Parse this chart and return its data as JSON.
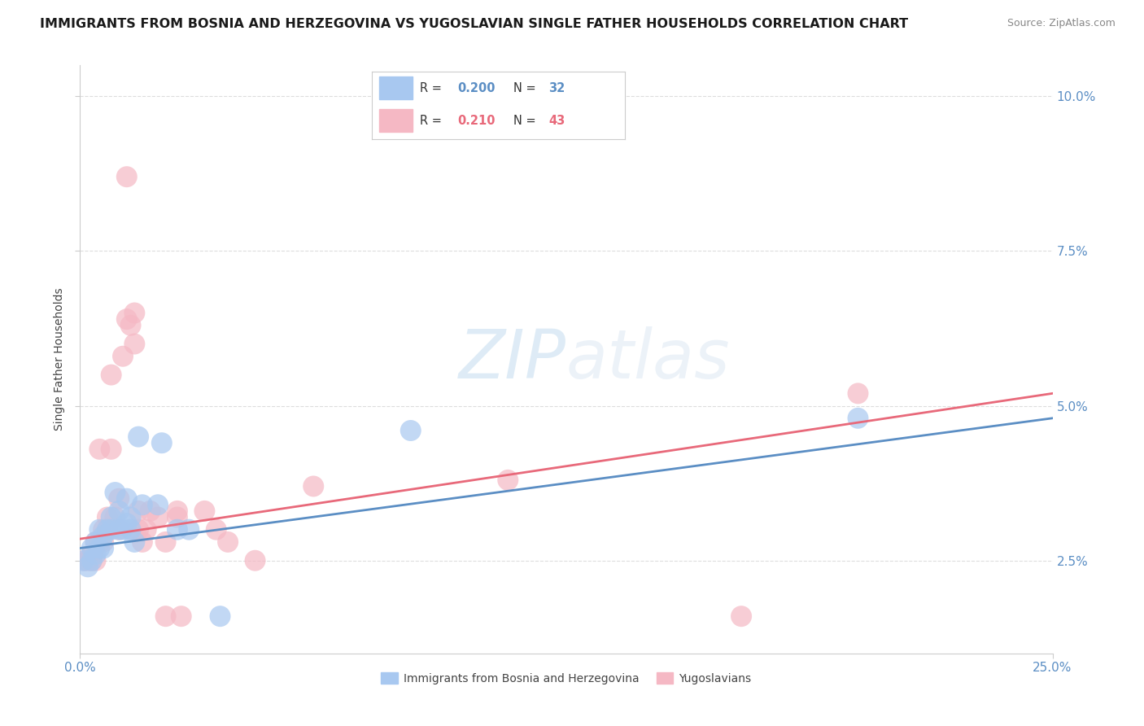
{
  "title": "IMMIGRANTS FROM BOSNIA AND HERZEGOVINA VS YUGOSLAVIAN SINGLE FATHER HOUSEHOLDS CORRELATION CHART",
  "source": "Source: ZipAtlas.com",
  "xlim": [
    0.0,
    0.25
  ],
  "ylim": [
    0.01,
    0.105
  ],
  "ylabel": "Single Father Households",
  "watermark_zip": "ZIP",
  "watermark_atlas": "atlas",
  "legend_label1": "Immigrants from Bosnia and Herzegovina",
  "legend_label2": "Yugoslavians",
  "blue_color": "#5b8ec4",
  "pink_color": "#e8697a",
  "blue_scatter_color": "#a8c8f0",
  "pink_scatter_color": "#f5b8c4",
  "ytick_vals": [
    0.025,
    0.05,
    0.075,
    0.1
  ],
  "ytick_labels": [
    "2.5%",
    "5.0%",
    "7.5%",
    "10.0%"
  ],
  "xtick_vals": [
    0.0,
    0.25
  ],
  "xtick_labels": [
    "0.0%",
    "25.0%"
  ],
  "tick_color": "#5b8ec4",
  "blue_scatter": [
    [
      0.001,
      0.025
    ],
    [
      0.002,
      0.024
    ],
    [
      0.003,
      0.025
    ],
    [
      0.003,
      0.027
    ],
    [
      0.004,
      0.026
    ],
    [
      0.004,
      0.028
    ],
    [
      0.005,
      0.027
    ],
    [
      0.005,
      0.03
    ],
    [
      0.006,
      0.027
    ],
    [
      0.006,
      0.029
    ],
    [
      0.007,
      0.03
    ],
    [
      0.008,
      0.03
    ],
    [
      0.008,
      0.032
    ],
    [
      0.009,
      0.036
    ],
    [
      0.01,
      0.03
    ],
    [
      0.01,
      0.033
    ],
    [
      0.011,
      0.03
    ],
    [
      0.012,
      0.031
    ],
    [
      0.012,
      0.035
    ],
    [
      0.013,
      0.032
    ],
    [
      0.013,
      0.03
    ],
    [
      0.014,
      0.028
    ],
    [
      0.015,
      0.045
    ],
    [
      0.016,
      0.034
    ],
    [
      0.02,
      0.034
    ],
    [
      0.021,
      0.044
    ],
    [
      0.025,
      0.03
    ],
    [
      0.028,
      0.03
    ],
    [
      0.036,
      0.016
    ],
    [
      0.085,
      0.046
    ],
    [
      0.2,
      0.048
    ]
  ],
  "pink_scatter": [
    [
      0.001,
      0.025
    ],
    [
      0.002,
      0.025
    ],
    [
      0.003,
      0.025
    ],
    [
      0.003,
      0.026
    ],
    [
      0.004,
      0.025
    ],
    [
      0.004,
      0.028
    ],
    [
      0.005,
      0.028
    ],
    [
      0.005,
      0.043
    ],
    [
      0.006,
      0.03
    ],
    [
      0.006,
      0.028
    ],
    [
      0.007,
      0.03
    ],
    [
      0.007,
      0.032
    ],
    [
      0.008,
      0.043
    ],
    [
      0.008,
      0.055
    ],
    [
      0.009,
      0.032
    ],
    [
      0.01,
      0.035
    ],
    [
      0.01,
      0.03
    ],
    [
      0.011,
      0.058
    ],
    [
      0.012,
      0.064
    ],
    [
      0.012,
      0.087
    ],
    [
      0.013,
      0.03
    ],
    [
      0.013,
      0.063
    ],
    [
      0.014,
      0.065
    ],
    [
      0.014,
      0.06
    ],
    [
      0.015,
      0.033
    ],
    [
      0.015,
      0.03
    ],
    [
      0.016,
      0.028
    ],
    [
      0.017,
      0.03
    ],
    [
      0.018,
      0.033
    ],
    [
      0.02,
      0.032
    ],
    [
      0.022,
      0.028
    ],
    [
      0.022,
      0.016
    ],
    [
      0.025,
      0.033
    ],
    [
      0.025,
      0.032
    ],
    [
      0.026,
      0.016
    ],
    [
      0.032,
      0.033
    ],
    [
      0.035,
      0.03
    ],
    [
      0.038,
      0.028
    ],
    [
      0.045,
      0.025
    ],
    [
      0.06,
      0.037
    ],
    [
      0.11,
      0.038
    ],
    [
      0.17,
      0.016
    ],
    [
      0.2,
      0.052
    ]
  ],
  "blue_line": {
    "x0": 0.0,
    "y0": 0.027,
    "x1": 0.25,
    "y1": 0.048
  },
  "pink_line": {
    "x0": 0.0,
    "y0": 0.0285,
    "x1": 0.25,
    "y1": 0.052
  },
  "background_color": "#ffffff",
  "grid_color": "#dddddd",
  "title_fontsize": 11.5,
  "source_fontsize": 9,
  "ylabel_fontsize": 10,
  "tick_fontsize": 11,
  "legend_fontsize": 10.5
}
